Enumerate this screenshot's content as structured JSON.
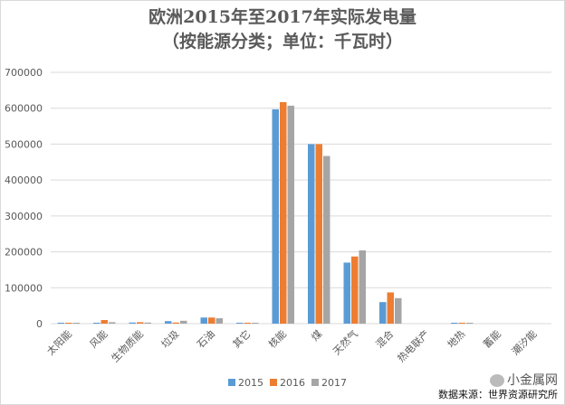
{
  "title_line1": "欧洲2015年至2017年实际发电量",
  "title_line2": "（按能源分类；单位：千瓦时）",
  "watermark_brand": "小金属网",
  "source_note": "数据来源：世界资源研究所",
  "chart_data": {
    "type": "bar",
    "categories": [
      "太阳能",
      "风能",
      "生物质能",
      "垃圾",
      "石油",
      "其它",
      "核能",
      "煤",
      "天然气",
      "混合",
      "热电联产",
      "地热",
      "蓄能",
      "潮汐能"
    ],
    "series": [
      {
        "name": "2015",
        "color": "#5b9bd5",
        "values": [
          1000,
          1500,
          3000,
          7000,
          17000,
          1000,
          597000,
          500000,
          170000,
          60000,
          0,
          1000,
          0,
          0
        ]
      },
      {
        "name": "2016",
        "color": "#ed7d31",
        "values": [
          1000,
          10000,
          4000,
          3000,
          17000,
          1000,
          617000,
          500000,
          187000,
          87000,
          0,
          2000,
          0,
          0
        ]
      },
      {
        "name": "2017",
        "color": "#a5a5a5",
        "values": [
          1000,
          4000,
          3000,
          8000,
          15000,
          1000,
          607000,
          467000,
          204000,
          71000,
          0,
          1000,
          0,
          0
        ]
      }
    ],
    "yticks": [
      "0",
      "100000",
      "200000",
      "300000",
      "400000",
      "500000",
      "600000",
      "700000"
    ],
    "ylim": [
      0,
      700000
    ],
    "grid": true,
    "legend_position": "bottom"
  }
}
